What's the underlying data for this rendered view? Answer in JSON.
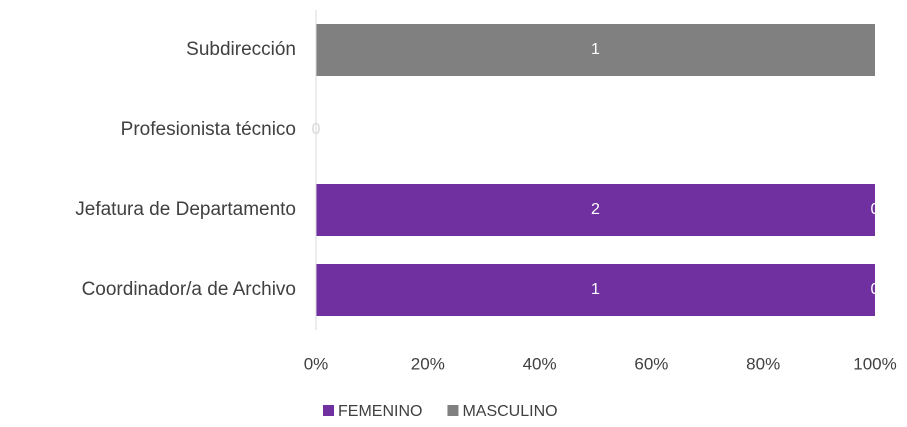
{
  "chart_data": {
    "type": "bar",
    "orientation": "horizontal",
    "stacking": "percent",
    "categories": [
      "Subdirección",
      "Profesionista técnico",
      "Jefatura de Departamento",
      "Coordinador/a de Archivo"
    ],
    "series": [
      {
        "name": "FEMENINO",
        "color": "#7030a0",
        "values": [
          0,
          0,
          2,
          1
        ]
      },
      {
        "name": "MASCULINO",
        "color": "#808080",
        "values": [
          1,
          0,
          0,
          0
        ]
      }
    ],
    "xlim": [
      0,
      100
    ],
    "xticks": [
      {
        "value": 0,
        "label": "0%"
      },
      {
        "value": 20,
        "label": "20%"
      },
      {
        "value": 40,
        "label": "40%"
      },
      {
        "value": 60,
        "label": "60%"
      },
      {
        "value": 80,
        "label": "80%"
      },
      {
        "value": 100,
        "label": "100%"
      }
    ],
    "legend": "bottom"
  }
}
